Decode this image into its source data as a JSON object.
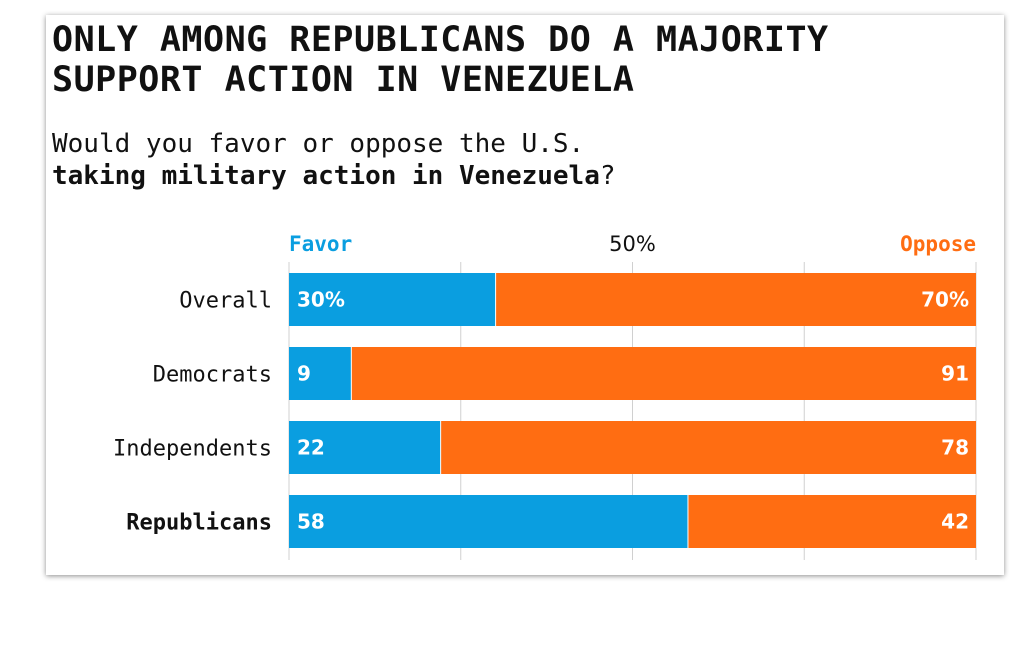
{
  "chart_data": {
    "type": "bar",
    "stacked": true,
    "orientation": "horizontal",
    "title": "ONLY AMONG REPUBLICANS DO A MAJORITY SUPPORT ACTION IN VENEZUELA",
    "title_lines": [
      "ONLY AMONG REPUBLICANS DO A MAJORITY",
      "SUPPORT ACTION IN VENEZUELA"
    ],
    "subtitle_plain": "Would you favor or oppose the U.S.",
    "subtitle_bold": "taking military action in Venezuela",
    "subtitle_end": "?",
    "categories": [
      "Overall",
      "Democrats",
      "Independents",
      "Republicans"
    ],
    "highlight_category": "Republicans",
    "series": [
      {
        "name": "Favor",
        "color": "#0a9ee0",
        "values": [
          30,
          9,
          22,
          58
        ],
        "labels": [
          "30%",
          "9",
          "22",
          "58"
        ]
      },
      {
        "name": "Oppose",
        "color": "#ff6d12",
        "values": [
          70,
          91,
          78,
          42
        ],
        "labels": [
          "70%",
          "91",
          "78",
          "42"
        ]
      }
    ],
    "xlim": [
      0,
      100
    ],
    "gridlines": [
      0,
      25,
      50,
      75,
      100
    ],
    "midpoint_label": "50%",
    "legend_position": "top"
  }
}
